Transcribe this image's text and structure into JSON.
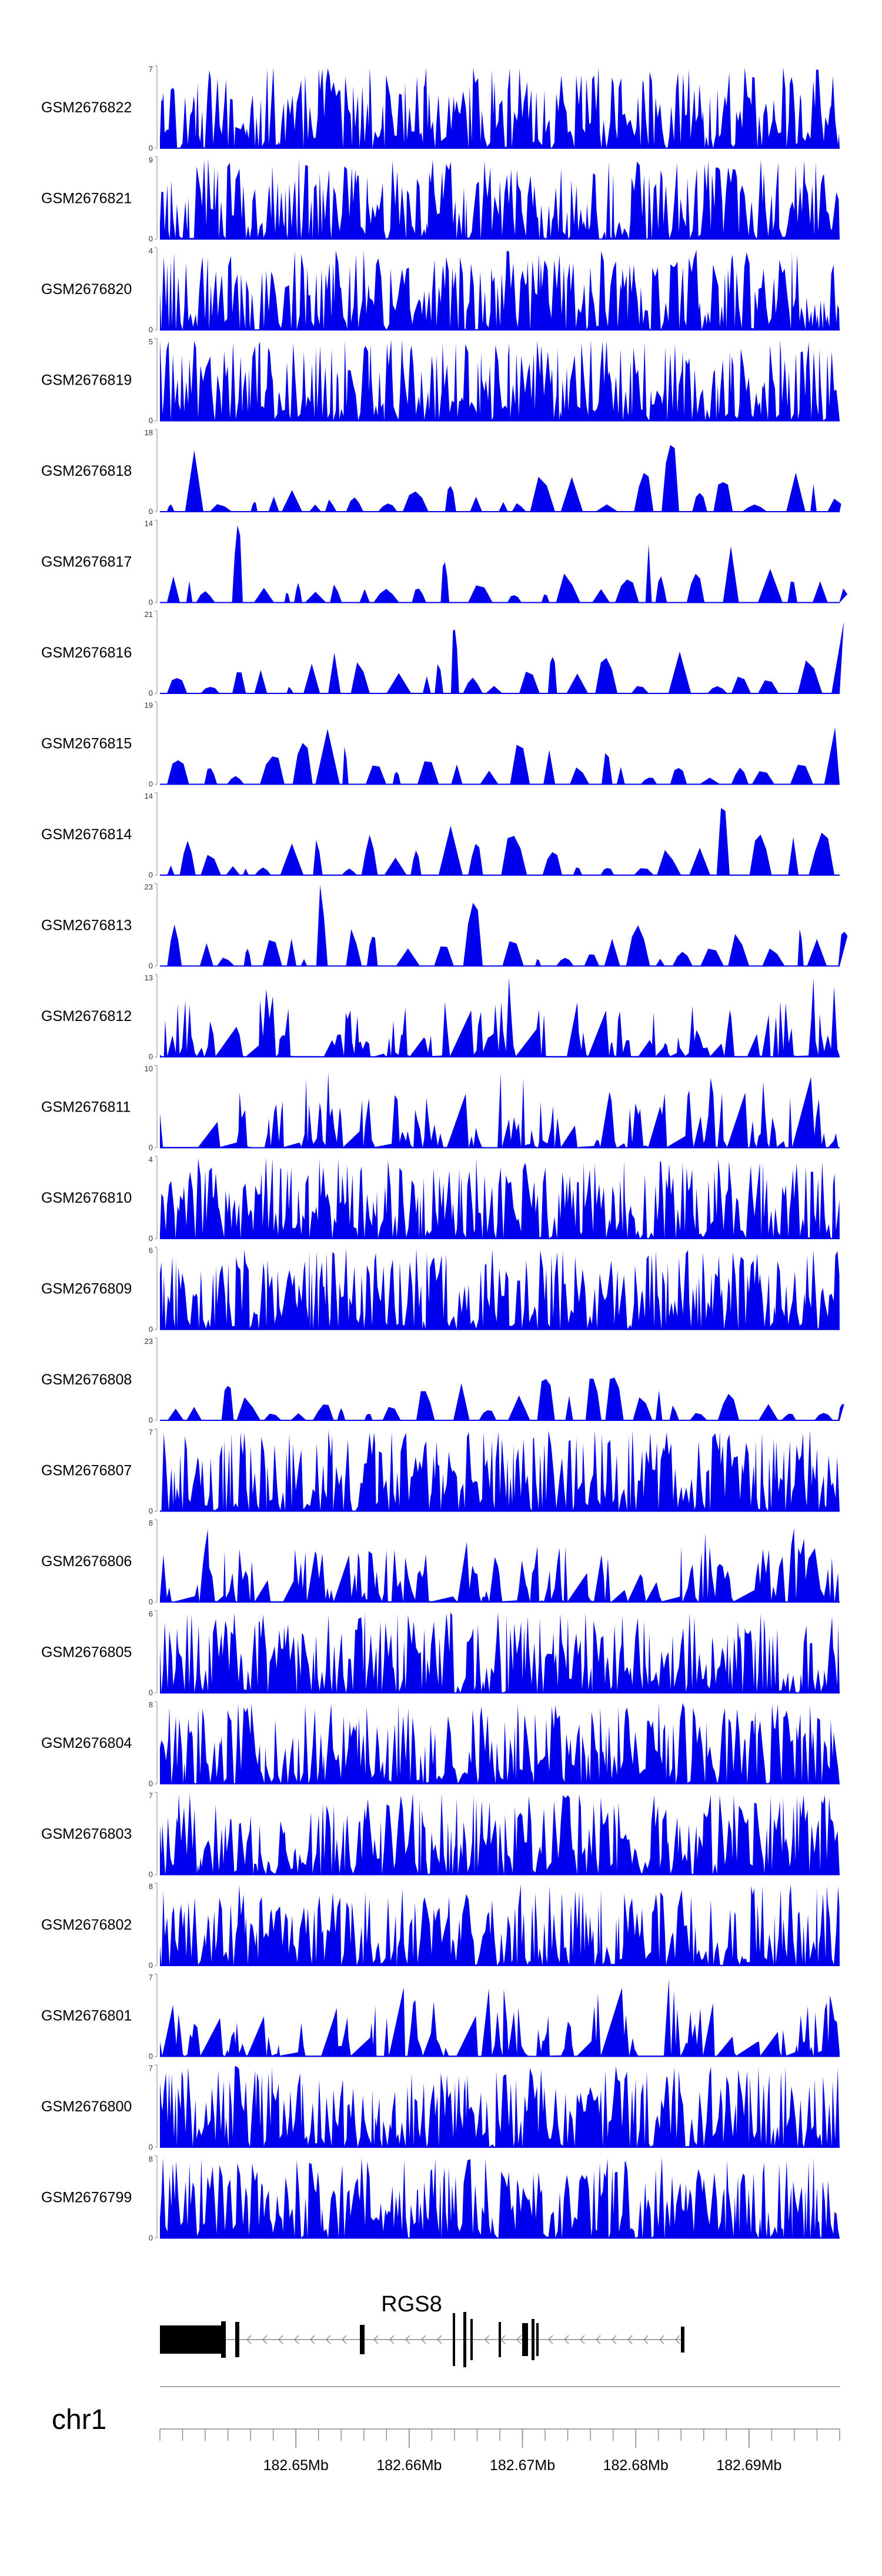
{
  "chart_data": {
    "type": "area",
    "title": "",
    "chromosome": "chr1",
    "gene": {
      "name": "RGS8",
      "strand": "-"
    },
    "x_axis": {
      "range_mb": [
        182.638,
        182.698
      ],
      "major_ticks_mb": [
        182.65,
        182.66,
        182.67,
        182.68,
        182.69
      ],
      "major_tick_labels": [
        "182.65Mb",
        "182.66Mb",
        "182.67Mb",
        "182.68Mb",
        "182.69Mb"
      ]
    },
    "tracks": [
      {
        "name": "GSM2676822",
        "ymin": "0",
        "ymax": "7",
        "seed": 11,
        "style": "dense"
      },
      {
        "name": "GSM2676821",
        "ymin": "0",
        "ymax": "9",
        "seed": 23,
        "style": "dense"
      },
      {
        "name": "GSM2676820",
        "ymin": "0",
        "ymax": "4",
        "seed": 37,
        "style": "dense"
      },
      {
        "name": "GSM2676819",
        "ymin": "0",
        "ymax": "5",
        "seed": 41,
        "style": "dense"
      },
      {
        "name": "GSM2676818",
        "ymin": "0",
        "ymax": "18",
        "seed": 53,
        "style": "sparse"
      },
      {
        "name": "GSM2676817",
        "ymin": "0",
        "ymax": "14",
        "seed": 67,
        "style": "sparse"
      },
      {
        "name": "GSM2676816",
        "ymin": "0",
        "ymax": "21",
        "seed": 71,
        "style": "sparse"
      },
      {
        "name": "GSM2676815",
        "ymin": "0",
        "ymax": "19",
        "seed": 83,
        "style": "sparse"
      },
      {
        "name": "GSM2676814",
        "ymin": "0",
        "ymax": "14",
        "seed": 97,
        "style": "sparse"
      },
      {
        "name": "GSM2676813",
        "ymin": "0",
        "ymax": "23",
        "seed": 101,
        "style": "sparse"
      },
      {
        "name": "GSM2676812",
        "ymin": "0",
        "ymax": "13",
        "seed": 113,
        "style": "medium"
      },
      {
        "name": "GSM2676811",
        "ymin": "0",
        "ymax": "10",
        "seed": 127,
        "style": "medium"
      },
      {
        "name": "GSM2676810",
        "ymin": "0",
        "ymax": "4",
        "seed": 131,
        "style": "dense"
      },
      {
        "name": "GSM2676809",
        "ymin": "0",
        "ymax": "6",
        "seed": 149,
        "style": "dense"
      },
      {
        "name": "GSM2676808",
        "ymin": "0",
        "ymax": "23",
        "seed": 157,
        "style": "sparse"
      },
      {
        "name": "GSM2676807",
        "ymin": "0",
        "ymax": "7",
        "seed": 163,
        "style": "dense"
      },
      {
        "name": "GSM2676806",
        "ymin": "0",
        "ymax": "8",
        "seed": 173,
        "style": "medium"
      },
      {
        "name": "GSM2676805",
        "ymin": "0",
        "ymax": "6",
        "seed": 181,
        "style": "dense"
      },
      {
        "name": "GSM2676804",
        "ymin": "0",
        "ymax": "8",
        "seed": 191,
        "style": "dense"
      },
      {
        "name": "GSM2676803",
        "ymin": "0",
        "ymax": "7",
        "seed": 199,
        "style": "dense"
      },
      {
        "name": "GSM2676802",
        "ymin": "0",
        "ymax": "8",
        "seed": 211,
        "style": "dense"
      },
      {
        "name": "GSM2676801",
        "ymin": "0",
        "ymax": "7",
        "seed": 223,
        "style": "medium"
      },
      {
        "name": "GSM2676800",
        "ymin": "0",
        "ymax": "7",
        "seed": 227,
        "style": "dense"
      },
      {
        "name": "GSM2676799",
        "ymin": "0",
        "ymax": "8",
        "seed": 233,
        "style": "dense"
      }
    ],
    "colors": {
      "signal": "#0000ee",
      "axis": "#888888",
      "text": "#000000"
    }
  }
}
